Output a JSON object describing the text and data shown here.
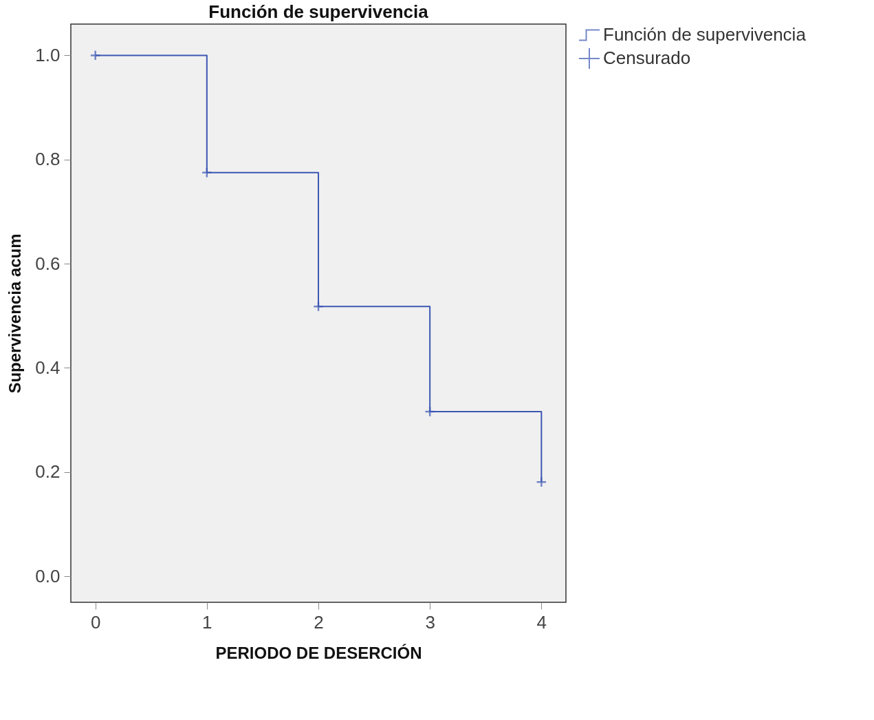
{
  "chart_data": {
    "type": "step",
    "title": "Función de supervivencia",
    "xlabel": "PERIODO DE DESERCIÓN",
    "ylabel": "Supervivencia acum",
    "x": [
      0,
      1,
      2,
      3,
      4
    ],
    "xlim": [
      -0.22,
      4.22
    ],
    "ylim": [
      -0.05,
      1.06
    ],
    "xticks": [
      0,
      1,
      2,
      3,
      4
    ],
    "yticks": [
      {
        "value": 0,
        "label": "0.0"
      },
      {
        "value": 0.2,
        "label": "0.2"
      },
      {
        "value": 0.4,
        "label": "0.4"
      },
      {
        "value": 0.6,
        "label": "0.6"
      },
      {
        "value": 0.8,
        "label": "0.8"
      },
      {
        "value": 1,
        "label": "1.0"
      }
    ],
    "series": [
      {
        "name": "Función de supervivencia",
        "color": "#3b57b3",
        "values": [
          1.0,
          0.775,
          0.518,
          0.316,
          0.181
        ]
      },
      {
        "name": "Censurado",
        "type": "scatter",
        "marker": "cross",
        "color": "#3b57b3",
        "values": [
          1.0,
          0.775,
          0.518,
          0.316,
          0.181
        ]
      }
    ],
    "legend": "right",
    "grid": false
  }
}
